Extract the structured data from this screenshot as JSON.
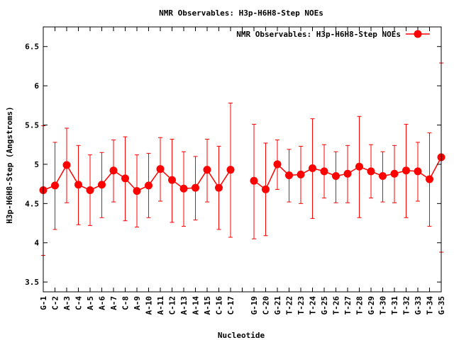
{
  "chart_data": {
    "type": "line",
    "title": "NMR Observables: H3p-H6H8-Step NOEs",
    "xlabel": "Nucleotide",
    "ylabel": "H3p-H6H8-Step (Angstroms)",
    "ylim": [
      3.375,
      6.75
    ],
    "yticks": [
      3.5,
      4,
      4.5,
      5,
      5.5,
      6,
      6.5
    ],
    "ytick_labels": [
      "3.5",
      "4",
      "4.5",
      "5",
      "5.5",
      "6",
      "6.5"
    ],
    "legend_position": "top-right",
    "grid": false,
    "categories": [
      "G-1",
      "C-2",
      "A-3",
      "C-4",
      "A-5",
      "A-6",
      "A-7",
      "C-8",
      "A-9",
      "A-10",
      "A-11",
      "C-12",
      "A-13",
      "A-14",
      "A-15",
      "C-16",
      "C-17",
      "",
      "G-19",
      "C-20",
      "G-21",
      "T-22",
      "T-23",
      "T-24",
      "G-25",
      "T-26",
      "T-27",
      "T-28",
      "G-29",
      "T-30",
      "T-31",
      "T-32",
      "G-33",
      "T-34",
      "G-35"
    ],
    "series": [
      {
        "name": "NMR Observables: H3p-H6H8-Step NOEs",
        "color": "#ff0000",
        "values": [
          4.67,
          4.73,
          4.99,
          4.74,
          4.67,
          4.74,
          4.92,
          4.82,
          4.66,
          4.73,
          4.94,
          4.8,
          4.69,
          4.7,
          4.93,
          4.7,
          4.93,
          null,
          4.79,
          4.68,
          5.0,
          4.86,
          4.87,
          4.95,
          4.91,
          4.85,
          4.88,
          4.97,
          4.91,
          4.85,
          4.88,
          4.92,
          4.91,
          4.81,
          5.09
        ],
        "err_low": [
          3.84,
          4.17,
          4.51,
          4.23,
          4.22,
          4.32,
          4.52,
          4.28,
          4.2,
          4.32,
          4.53,
          4.26,
          4.21,
          4.29,
          4.52,
          4.17,
          4.07,
          null,
          4.05,
          4.09,
          4.68,
          4.52,
          4.5,
          4.31,
          4.57,
          4.51,
          4.51,
          4.32,
          4.57,
          4.52,
          4.51,
          4.32,
          4.53,
          4.21,
          3.88
        ],
        "err_high": [
          5.49,
          5.28,
          5.46,
          5.24,
          5.12,
          5.15,
          5.31,
          5.35,
          5.12,
          5.14,
          5.34,
          5.32,
          5.16,
          5.1,
          5.32,
          5.23,
          5.78,
          null,
          5.51,
          5.27,
          5.31,
          5.19,
          5.23,
          5.58,
          5.25,
          5.16,
          5.24,
          5.61,
          5.25,
          5.16,
          5.24,
          5.51,
          5.28,
          5.4,
          6.29
        ]
      }
    ]
  }
}
